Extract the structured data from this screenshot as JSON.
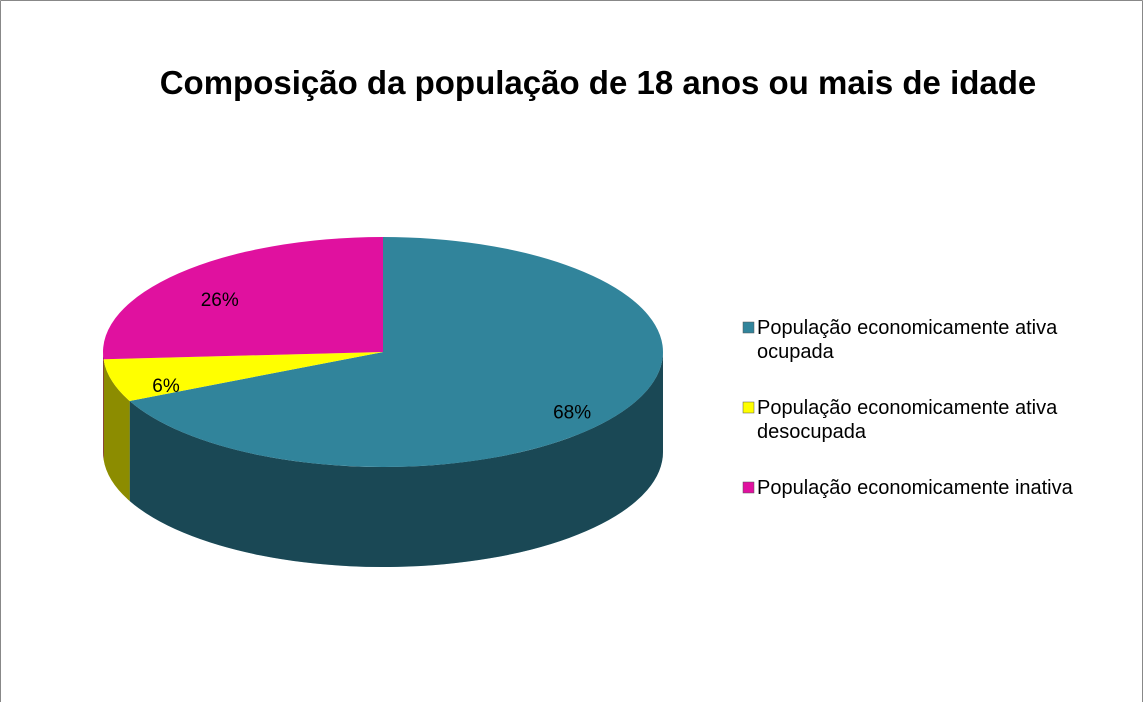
{
  "chart_data": {
    "type": "pie",
    "title": "Composição da população de 18 anos ou mais de idade",
    "categories": [
      "População economicamente ativa ocupada",
      "População economicamente ativa desocupada",
      "População economicamente inativa"
    ],
    "values": [
      68,
      6,
      26
    ],
    "value_labels": [
      "68%",
      "6%",
      "26%"
    ],
    "colors": [
      "#31849b",
      "#ffff00",
      "#e0119f"
    ],
    "legend": "right"
  }
}
